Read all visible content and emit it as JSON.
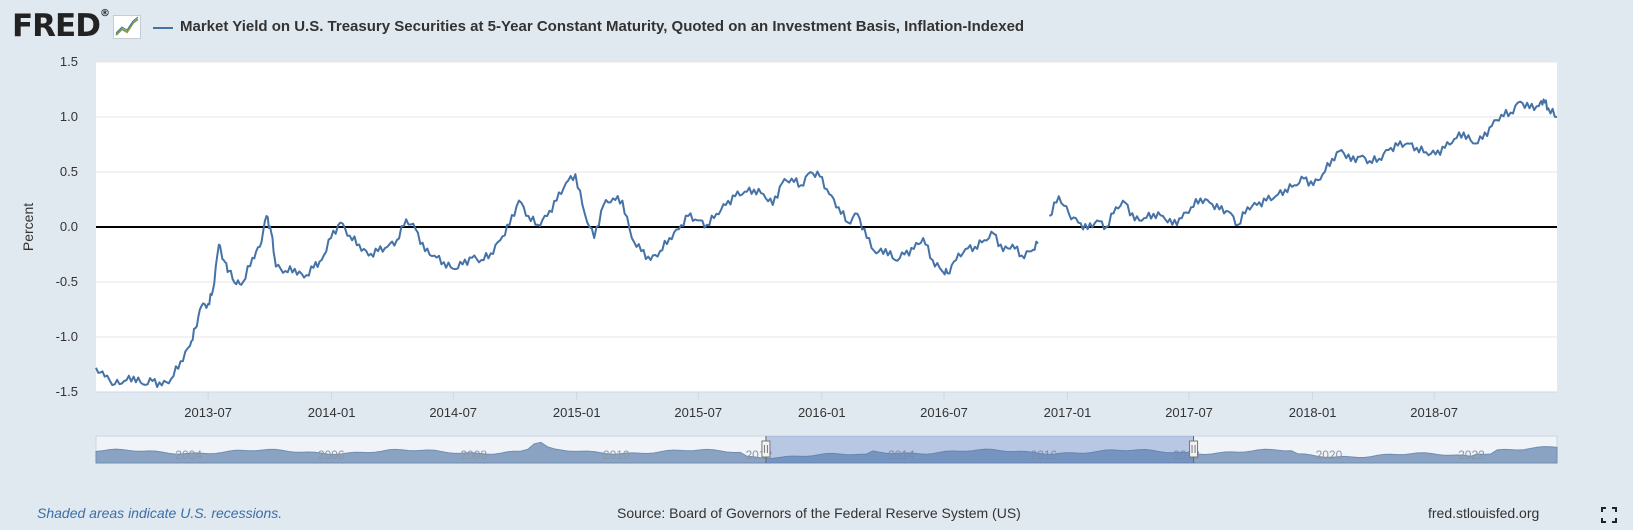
{
  "header": {
    "logo_text": "FRED",
    "logo_registered": "®",
    "logo_icon": "trend-line-icon"
  },
  "footer": {
    "recession_note": "Shaded areas indicate U.S. recessions.",
    "source": "Source: Board of Governors of the Federal Reserve System (US)",
    "url": "fred.stlouisfed.org",
    "fullscreen_icon": "fullscreen-icon"
  },
  "chart_data": {
    "type": "line",
    "title": "Market Yield on U.S. Treasury Securities at 5-Year Constant Maturity, Quoted on an Investment Basis, Inflation-Indexed",
    "ylabel": "Percent",
    "ylim": [
      -1.5,
      1.5
    ],
    "xlim": [
      "2013-01-15",
      "2018-12-31"
    ],
    "y_ticks": [
      "1.5",
      "1.0",
      "0.5",
      "0.0",
      "-0.5",
      "-1.0",
      "-1.5"
    ],
    "x_ticks": [
      "2013-07",
      "2014-01",
      "2014-07",
      "2015-01",
      "2015-07",
      "2016-01",
      "2016-07",
      "2017-01",
      "2017-07",
      "2018-01",
      "2018-07"
    ],
    "grid": true,
    "zero_line": true,
    "line_color": "#4572a7",
    "series": [
      {
        "name": "Market Yield on U.S. Treasury Securities at 5-Year Constant Maturity, Quoted on an Investment Basis, Inflation-Indexed",
        "points": [
          [
            "2013-01-15",
            -1.28
          ],
          [
            "2013-01-28",
            -1.36
          ],
          [
            "2013-02-12",
            -1.43
          ],
          [
            "2013-02-26",
            -1.4
          ],
          [
            "2013-03-12",
            -1.36
          ],
          [
            "2013-03-26",
            -1.43
          ],
          [
            "2013-04-09",
            -1.4
          ],
          [
            "2013-04-23",
            -1.44
          ],
          [
            "2013-05-07",
            -1.38
          ],
          [
            "2013-05-21",
            -1.22
          ],
          [
            "2013-06-04",
            -1.08
          ],
          [
            "2013-06-12",
            -0.92
          ],
          [
            "2013-06-21",
            -0.72
          ],
          [
            "2013-07-01",
            -0.7
          ],
          [
            "2013-07-08",
            -0.58
          ],
          [
            "2013-07-17",
            -0.16
          ],
          [
            "2013-07-24",
            -0.3
          ],
          [
            "2013-08-01",
            -0.4
          ],
          [
            "2013-08-12",
            -0.52
          ],
          [
            "2013-08-22",
            -0.5
          ],
          [
            "2013-09-05",
            -0.28
          ],
          [
            "2013-09-16",
            -0.18
          ],
          [
            "2013-09-26",
            0.1
          ],
          [
            "2013-10-03",
            -0.05
          ],
          [
            "2013-10-10",
            -0.36
          ],
          [
            "2013-10-24",
            -0.4
          ],
          [
            "2013-11-07",
            -0.38
          ],
          [
            "2013-11-21",
            -0.46
          ],
          [
            "2013-12-05",
            -0.37
          ],
          [
            "2013-12-17",
            -0.3
          ],
          [
            "2013-12-31",
            -0.1
          ],
          [
            "2014-01-14",
            0.04
          ],
          [
            "2014-01-28",
            -0.08
          ],
          [
            "2014-02-11",
            -0.16
          ],
          [
            "2014-02-25",
            -0.26
          ],
          [
            "2014-03-11",
            -0.22
          ],
          [
            "2014-03-25",
            -0.18
          ],
          [
            "2014-04-08",
            -0.12
          ],
          [
            "2014-04-22",
            0.07
          ],
          [
            "2014-05-06",
            -0.02
          ],
          [
            "2014-05-20",
            -0.22
          ],
          [
            "2014-06-03",
            -0.26
          ],
          [
            "2014-06-17",
            -0.32
          ],
          [
            "2014-07-01",
            -0.38
          ],
          [
            "2014-07-15",
            -0.34
          ],
          [
            "2014-07-29",
            -0.28
          ],
          [
            "2014-08-12",
            -0.3
          ],
          [
            "2014-08-26",
            -0.24
          ],
          [
            "2014-09-09",
            -0.12
          ],
          [
            "2014-09-23",
            0.02
          ],
          [
            "2014-10-07",
            0.24
          ],
          [
            "2014-10-21",
            0.1
          ],
          [
            "2014-11-04",
            0.02
          ],
          [
            "2014-11-18",
            0.1
          ],
          [
            "2014-12-02",
            0.24
          ],
          [
            "2014-12-16",
            0.4
          ],
          [
            "2014-12-30",
            0.48
          ],
          [
            "2015-01-13",
            0.12
          ],
          [
            "2015-01-27",
            -0.1
          ],
          [
            "2015-02-10",
            0.2
          ],
          [
            "2015-02-24",
            0.26
          ],
          [
            "2015-03-10",
            0.24
          ],
          [
            "2015-03-24",
            -0.1
          ],
          [
            "2015-04-07",
            -0.22
          ],
          [
            "2015-04-21",
            -0.3
          ],
          [
            "2015-05-05",
            -0.22
          ],
          [
            "2015-05-19",
            -0.1
          ],
          [
            "2015-06-02",
            -0.02
          ],
          [
            "2015-06-16",
            0.1
          ],
          [
            "2015-06-30",
            0.06
          ],
          [
            "2015-07-14",
            0.02
          ],
          [
            "2015-07-28",
            0.12
          ],
          [
            "2015-08-11",
            0.2
          ],
          [
            "2015-08-25",
            0.28
          ],
          [
            "2015-09-08",
            0.32
          ],
          [
            "2015-09-22",
            0.34
          ],
          [
            "2015-10-06",
            0.3
          ],
          [
            "2015-10-20",
            0.2
          ],
          [
            "2015-11-03",
            0.4
          ],
          [
            "2015-11-17",
            0.44
          ],
          [
            "2015-12-01",
            0.38
          ],
          [
            "2015-12-15",
            0.5
          ],
          [
            "2015-12-29",
            0.46
          ],
          [
            "2016-01-12",
            0.3
          ],
          [
            "2016-01-26",
            0.18
          ],
          [
            "2016-02-09",
            0.04
          ],
          [
            "2016-02-23",
            0.12
          ],
          [
            "2016-03-08",
            -0.1
          ],
          [
            "2016-03-22",
            -0.24
          ],
          [
            "2016-04-05",
            -0.2
          ],
          [
            "2016-04-19",
            -0.3
          ],
          [
            "2016-05-03",
            -0.25
          ],
          [
            "2016-05-17",
            -0.2
          ],
          [
            "2016-05-31",
            -0.1
          ],
          [
            "2016-06-14",
            -0.3
          ],
          [
            "2016-06-28",
            -0.4
          ],
          [
            "2016-07-06",
            -0.42
          ],
          [
            "2016-07-19",
            -0.3
          ],
          [
            "2016-08-02",
            -0.2
          ],
          [
            "2016-08-16",
            -0.18
          ],
          [
            "2016-08-30",
            -0.12
          ],
          [
            "2016-09-13",
            -0.06
          ],
          [
            "2016-09-27",
            -0.22
          ],
          [
            "2016-10-11",
            -0.16
          ],
          [
            "2016-10-25",
            -0.26
          ],
          [
            "2016-11-08",
            -0.22
          ],
          [
            "2016-11-18",
            -0.15
          ],
          null,
          [
            "2016-12-05",
            0.1
          ],
          [
            "2016-12-19",
            0.28
          ],
          [
            "2017-01-03",
            0.12
          ],
          [
            "2017-01-17",
            0.04
          ],
          [
            "2017-01-31",
            -0.02
          ],
          [
            "2017-02-14",
            0.06
          ],
          [
            "2017-02-28",
            0.0
          ],
          [
            "2017-03-14",
            0.18
          ],
          [
            "2017-03-28",
            0.22
          ],
          [
            "2017-04-11",
            0.06
          ],
          [
            "2017-04-25",
            0.08
          ],
          [
            "2017-05-09",
            0.12
          ],
          [
            "2017-05-23",
            0.1
          ],
          [
            "2017-06-06",
            0.02
          ],
          [
            "2017-06-20",
            0.08
          ],
          [
            "2017-07-04",
            0.18
          ],
          [
            "2017-07-18",
            0.26
          ],
          [
            "2017-08-01",
            0.22
          ],
          [
            "2017-08-15",
            0.16
          ],
          [
            "2017-08-29",
            0.14
          ],
          [
            "2017-09-12",
            0.02
          ],
          [
            "2017-09-26",
            0.18
          ],
          [
            "2017-10-10",
            0.2
          ],
          [
            "2017-10-24",
            0.24
          ],
          [
            "2017-11-07",
            0.28
          ],
          [
            "2017-11-21",
            0.34
          ],
          [
            "2017-12-05",
            0.38
          ],
          [
            "2017-12-19",
            0.44
          ],
          [
            "2018-01-02",
            0.38
          ],
          [
            "2018-01-16",
            0.48
          ],
          [
            "2018-01-30",
            0.62
          ],
          [
            "2018-02-13",
            0.7
          ],
          [
            "2018-02-27",
            0.6
          ],
          [
            "2018-03-13",
            0.64
          ],
          [
            "2018-03-27",
            0.6
          ],
          [
            "2018-04-10",
            0.62
          ],
          [
            "2018-04-24",
            0.7
          ],
          [
            "2018-05-08",
            0.74
          ],
          [
            "2018-05-22",
            0.76
          ],
          [
            "2018-06-05",
            0.72
          ],
          [
            "2018-06-19",
            0.68
          ],
          [
            "2018-07-03",
            0.66
          ],
          [
            "2018-07-17",
            0.72
          ],
          [
            "2018-07-31",
            0.8
          ],
          [
            "2018-08-14",
            0.86
          ],
          [
            "2018-08-28",
            0.76
          ],
          [
            "2018-09-11",
            0.8
          ],
          [
            "2018-09-25",
            0.92
          ],
          [
            "2018-10-09",
            1.02
          ],
          [
            "2018-10-23",
            1.04
          ],
          [
            "2018-11-06",
            1.14
          ],
          [
            "2018-11-20",
            1.08
          ],
          [
            "2018-12-04",
            1.1
          ],
          [
            "2018-12-11",
            1.16
          ],
          [
            "2018-12-18",
            1.08
          ],
          [
            "2018-12-31",
            1.0
          ]
        ]
      }
    ],
    "navigator": {
      "tick_labels": [
        "2004",
        "2006",
        "2008",
        "2010",
        "2012",
        "2014",
        "2016",
        "2018",
        "2020",
        "2022"
      ],
      "range_start": "2012",
      "range_end": "2018"
    }
  }
}
